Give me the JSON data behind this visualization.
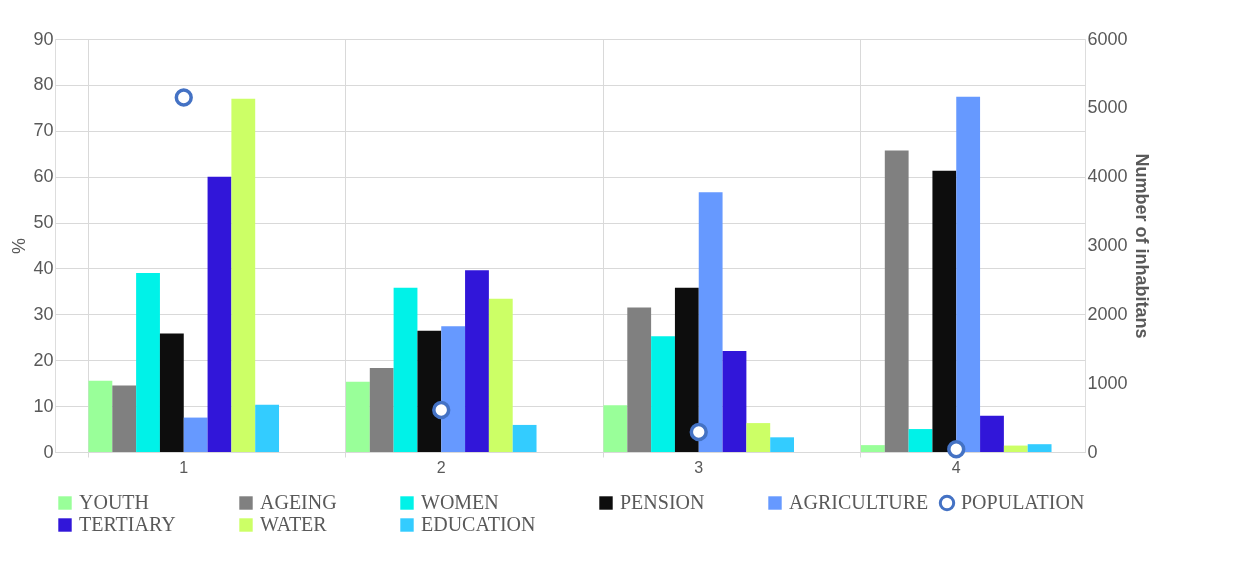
{
  "chart_data": {
    "type": "bar",
    "categories": [
      "1",
      "2",
      "3",
      "4"
    ],
    "ylabel": "%",
    "y2label": "Number of inhabitans",
    "ylim": [
      0,
      90
    ],
    "yticks": [
      0,
      10,
      20,
      30,
      40,
      50,
      60,
      70,
      80,
      90
    ],
    "y2lim": [
      0,
      6000
    ],
    "y2ticks": [
      0,
      1000,
      2000,
      3000,
      4000,
      5000,
      6000
    ],
    "grid": true,
    "legend": "bottom",
    "series": [
      {
        "name": "YOUTH",
        "color": "#99ff99",
        "values": [
          15.5,
          15.3,
          10.2,
          1.5
        ]
      },
      {
        "name": "AGEING",
        "color": "#808080",
        "values": [
          14.5,
          18.3,
          31.5,
          65.7
        ]
      },
      {
        "name": "WOMEN",
        "color": "#00f2e8",
        "values": [
          39,
          35.8,
          25.2,
          5
        ]
      },
      {
        "name": "PENSION",
        "color": "#0d0d0d",
        "values": [
          25.8,
          26.4,
          35.8,
          61.3
        ]
      },
      {
        "name": "AGRICULTURE",
        "color": "#6699ff",
        "values": [
          7.5,
          27.4,
          56.6,
          77.4
        ]
      },
      {
        "name": "TERTIARY",
        "color": "#3116d9",
        "values": [
          60,
          39.6,
          22,
          7.9
        ]
      },
      {
        "name": "WATER",
        "color": "#ccff66",
        "values": [
          77,
          33.4,
          6.3,
          1.4
        ]
      },
      {
        "name": "EDUCATION",
        "color": "#33ccff",
        "values": [
          10.3,
          5.9,
          3.2,
          1.7
        ]
      },
      {
        "name": "POPULATION",
        "color": "#4472c4",
        "type": "scatter",
        "marker": "circle",
        "axis": "y2",
        "values": [
          5150,
          610,
          290,
          40
        ]
      }
    ]
  }
}
